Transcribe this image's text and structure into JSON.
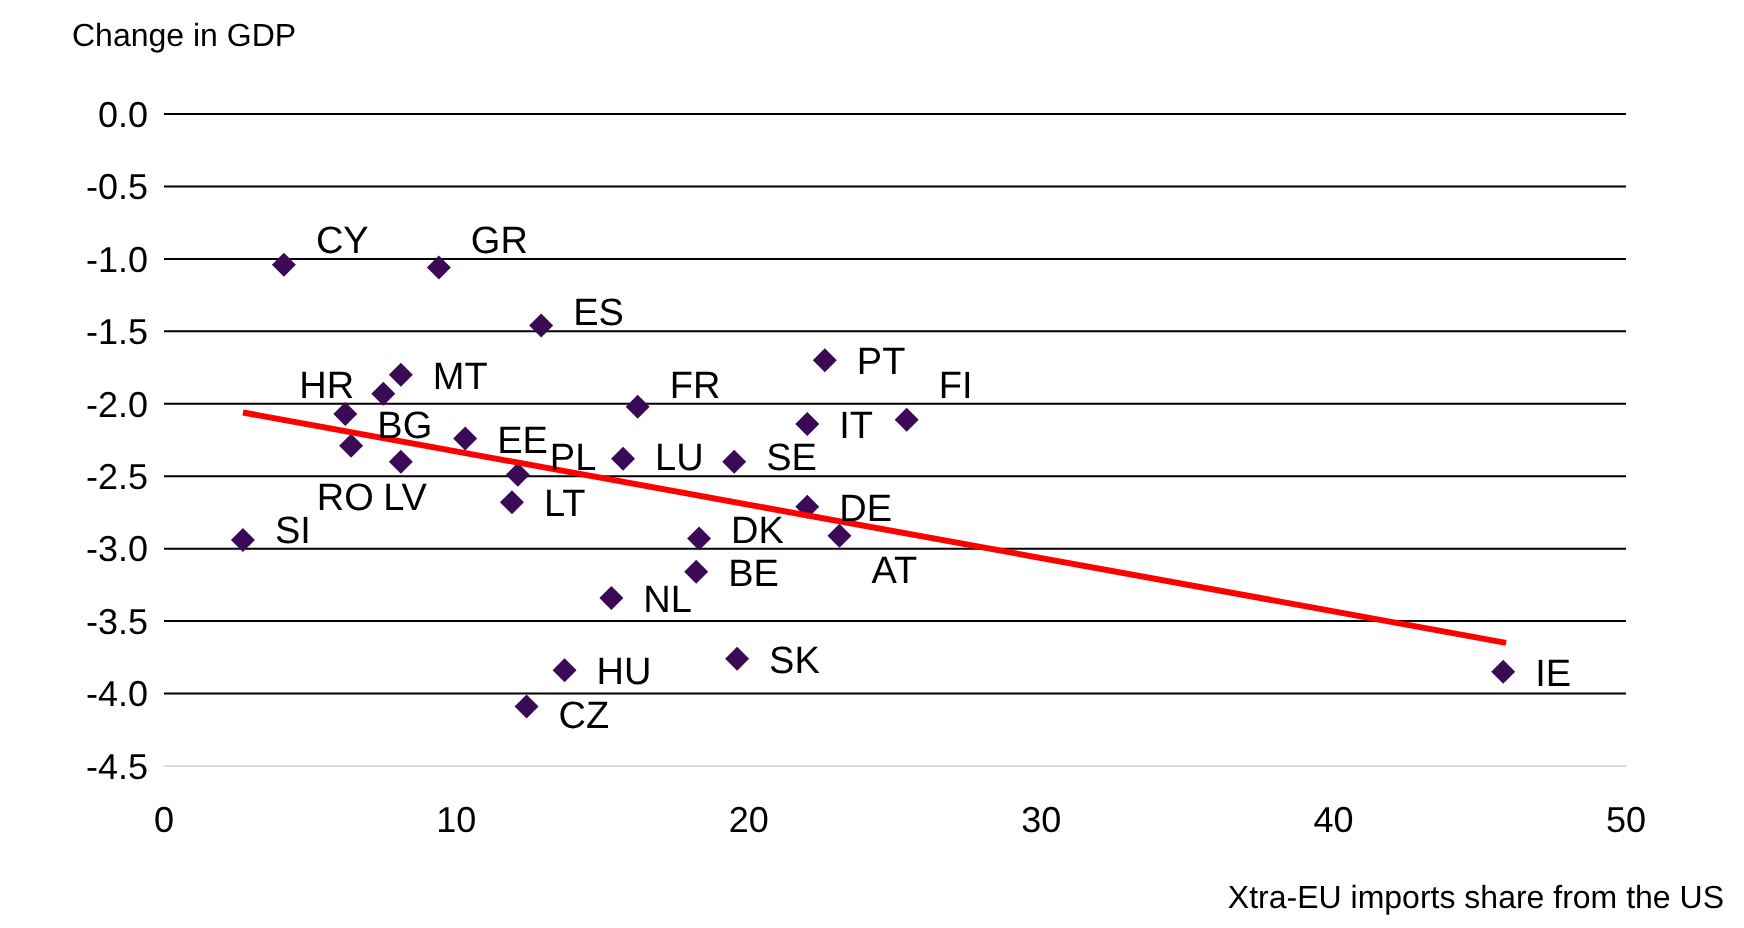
{
  "chart_data": {
    "type": "scatter",
    "xlabel": "Xtra-EU imports share from the US",
    "ylabel": "Change in GDP",
    "xlim": [
      0,
      50
    ],
    "xticks": [
      0,
      10,
      20,
      30,
      40,
      50
    ],
    "ylim": [
      -4.5,
      0
    ],
    "yticks": [
      {
        "value": 0,
        "label": "0.0"
      },
      {
        "value": -0.5,
        "label": "-0.5"
      },
      {
        "value": -1,
        "label": "-1.0"
      },
      {
        "value": -1.5,
        "label": "-1.5"
      },
      {
        "value": -2,
        "label": "-2.0"
      },
      {
        "value": -2.5,
        "label": "-2.5"
      },
      {
        "value": -3,
        "label": "-3.0"
      },
      {
        "value": -3.5,
        "label": "-3.5"
      },
      {
        "value": -4,
        "label": "-4.0"
      },
      {
        "value": -4.5,
        "label": "-4.5"
      }
    ],
    "grid": "y",
    "marker": "diamond",
    "series": [
      {
        "type": "scatter",
        "color": "#3b0a57",
        "x": [
          4.1,
          9.4,
          12.9,
          8.1,
          7.5,
          6.2,
          6.4,
          8.1,
          10.3,
          12.1,
          11.9,
          2.7,
          22.6,
          16.2,
          22.0,
          25.4,
          15.7,
          19.5,
          22.0,
          23.1,
          18.3,
          18.2,
          15.3,
          19.6,
          13.7,
          12.4,
          45.8
        ],
        "values": [
          -1.04,
          -1.06,
          -1.46,
          -1.8,
          -1.93,
          -2.07,
          -2.29,
          -2.4,
          -2.24,
          -2.49,
          -2.68,
          -2.94,
          -1.7,
          -2.02,
          -2.14,
          -2.11,
          -2.38,
          -2.4,
          -2.71,
          -2.91,
          -2.93,
          -3.16,
          -3.34,
          -3.76,
          -3.84,
          -4.09,
          -3.85
        ],
        "value_labels": [
          "CY",
          "GR",
          "ES",
          "MT",
          "HR",
          "BG",
          "LV",
          "RO",
          "EE",
          "PL",
          "LT",
          "SI",
          "PT",
          "FR",
          "IT",
          "FI",
          "LU",
          "SE",
          "DE",
          "AT",
          "DK",
          "BE",
          "NL",
          "SK",
          "HU",
          "CZ",
          "IE"
        ]
      },
      {
        "type": "line",
        "color": "#ff0000",
        "marker": "none",
        "x": [
          2.7,
          45.9
        ],
        "values": [
          -2.06,
          -3.65
        ]
      }
    ]
  }
}
